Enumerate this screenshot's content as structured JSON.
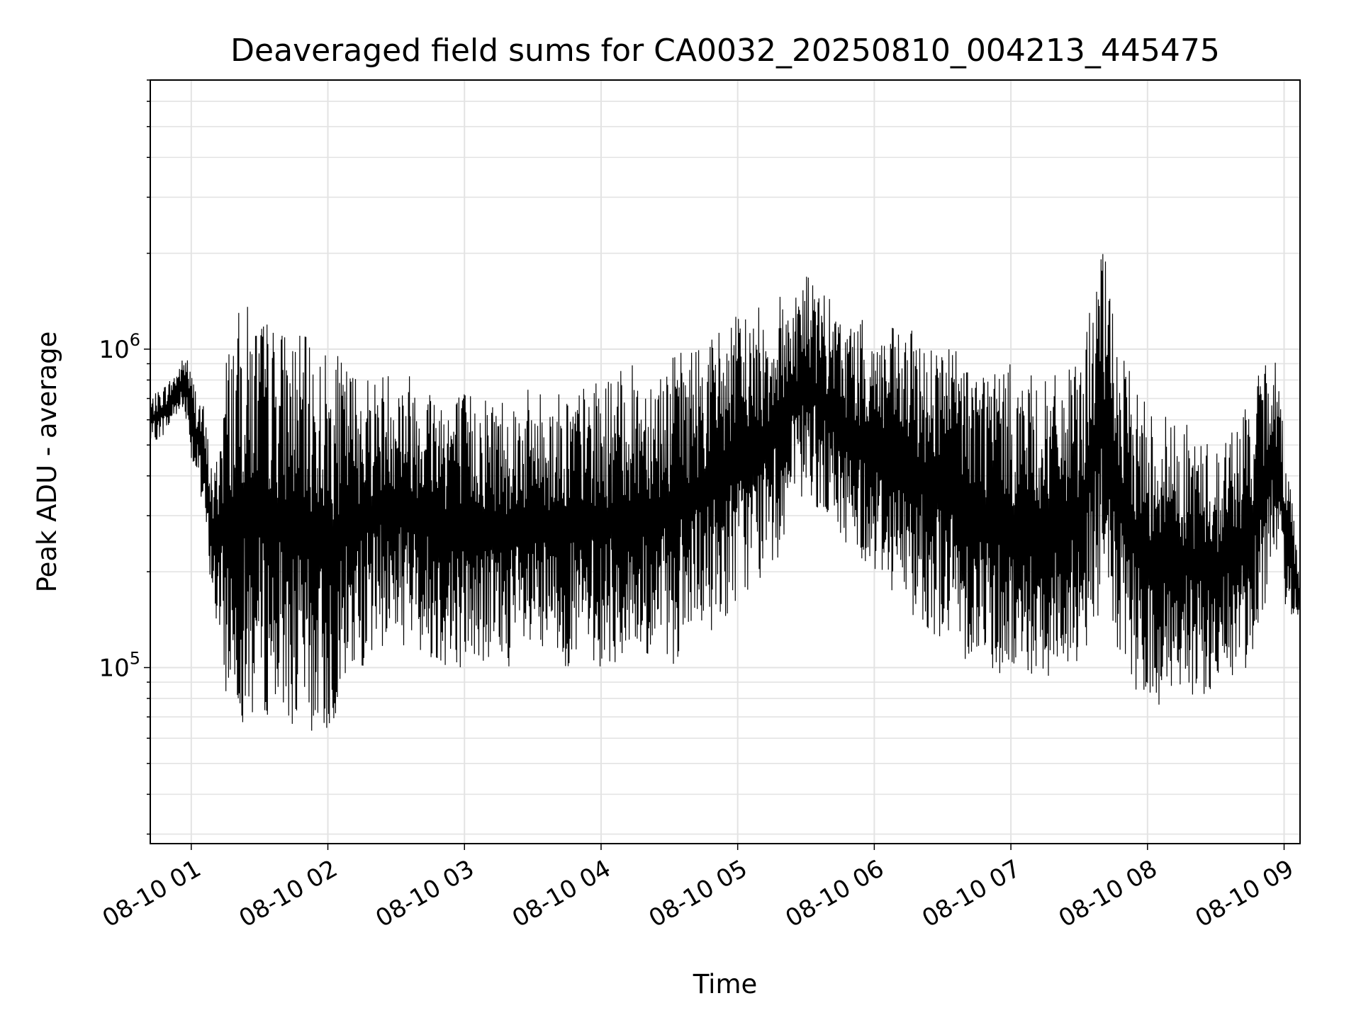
{
  "chart_data": {
    "type": "line",
    "title": "Deaveraged field sums for CA0032_20250810_004213_445475",
    "xlabel": "Time",
    "ylabel": "Peak ADU - average",
    "yscale": "log",
    "ylim": [
      28000,
      7000000
    ],
    "xlim": [
      "2025-08-10 00:42",
      "2025-08-10 09:07"
    ],
    "grid": true,
    "line_color": "#000000",
    "x_tick_labels": [
      "08-10 01",
      "08-10 02",
      "08-10 03",
      "08-10 04",
      "08-10 05",
      "08-10 06",
      "08-10 07",
      "08-10 08",
      "08-10 09"
    ],
    "y_tick_labels": [
      {
        "base": "10",
        "exp": "5",
        "value": 100000
      },
      {
        "base": "10",
        "exp": "6",
        "value": 1000000
      }
    ],
    "series": [
      {
        "x": [
          "2025-08-10 00:42",
          "2025-08-10 00:50",
          "2025-08-10 00:55",
          "2025-08-10 00:58",
          "2025-08-10 01:00",
          "2025-08-10 01:05",
          "2025-08-10 01:10",
          "2025-08-10 01:15",
          "2025-08-10 01:20",
          "2025-08-10 01:25",
          "2025-08-10 01:30",
          "2025-08-10 01:40",
          "2025-08-10 01:50",
          "2025-08-10 02:00",
          "2025-08-10 02:10",
          "2025-08-10 02:20",
          "2025-08-10 02:30",
          "2025-08-10 02:40",
          "2025-08-10 02:50",
          "2025-08-10 03:00",
          "2025-08-10 03:15",
          "2025-08-10 03:30",
          "2025-08-10 03:45",
          "2025-08-10 04:00",
          "2025-08-10 04:15",
          "2025-08-10 04:30",
          "2025-08-10 04:45",
          "2025-08-10 05:00",
          "2025-08-10 05:15",
          "2025-08-10 05:30",
          "2025-08-10 05:45",
          "2025-08-10 06:00",
          "2025-08-10 06:15",
          "2025-08-10 06:30",
          "2025-08-10 06:45",
          "2025-08-10 07:00",
          "2025-08-10 07:15",
          "2025-08-10 07:30",
          "2025-08-10 07:40",
          "2025-08-10 07:50",
          "2025-08-10 08:00",
          "2025-08-10 08:15",
          "2025-08-10 08:30",
          "2025-08-10 08:45",
          "2025-08-10 08:55",
          "2025-08-10 09:00",
          "2025-08-10 09:07"
        ],
        "low": [
          500000,
          550000,
          650000,
          600000,
          450000,
          300000,
          150000,
          80000,
          70000,
          65000,
          70000,
          70000,
          60000,
          60000,
          90000,
          110000,
          120000,
          110000,
          100000,
          100000,
          100000,
          100000,
          100000,
          100000,
          100000,
          100000,
          120000,
          160000,
          200000,
          350000,
          250000,
          200000,
          150000,
          120000,
          100000,
          90000,
          90000,
          100000,
          150000,
          90000,
          70000,
          80000,
          80000,
          100000,
          200000,
          150000,
          140000
        ],
        "high": [
          700000,
          800000,
          900000,
          1000000,
          850000,
          700000,
          400000,
          1000000,
          1300000,
          1400000,
          1300000,
          1200000,
          1100000,
          1000000,
          900000,
          850000,
          900000,
          850000,
          800000,
          750000,
          750000,
          750000,
          750000,
          800000,
          900000,
          950000,
          1100000,
          1300000,
          1400000,
          1800000,
          1300000,
          1200000,
          1150000,
          1100000,
          950000,
          900000,
          800000,
          900000,
          2200000,
          900000,
          700000,
          600000,
          500000,
          700000,
          1100000,
          600000,
          200000
        ]
      }
    ]
  }
}
